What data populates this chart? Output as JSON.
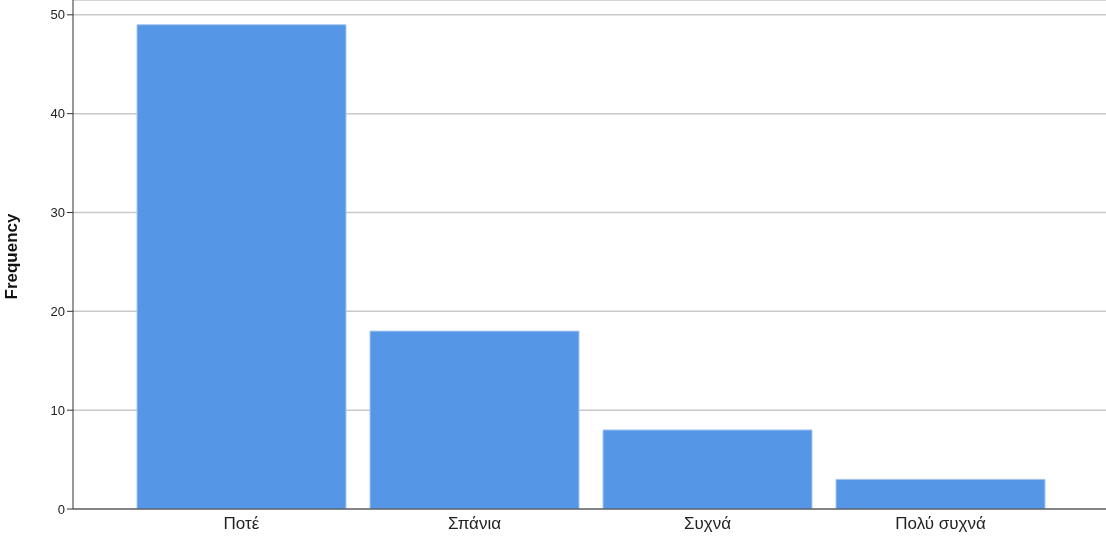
{
  "chart_data": {
    "type": "bar",
    "ylabel": "Frequency",
    "categories": [
      "Ποτέ",
      "Σπάνια",
      "Συχνά",
      "Πολύ συχνά"
    ],
    "values": [
      49,
      18,
      8,
      3
    ],
    "color": "#5596e6",
    "ylim": [
      0,
      51.5
    ],
    "yticks": [
      0,
      10,
      20,
      30,
      40,
      50
    ],
    "grid": "y"
  }
}
